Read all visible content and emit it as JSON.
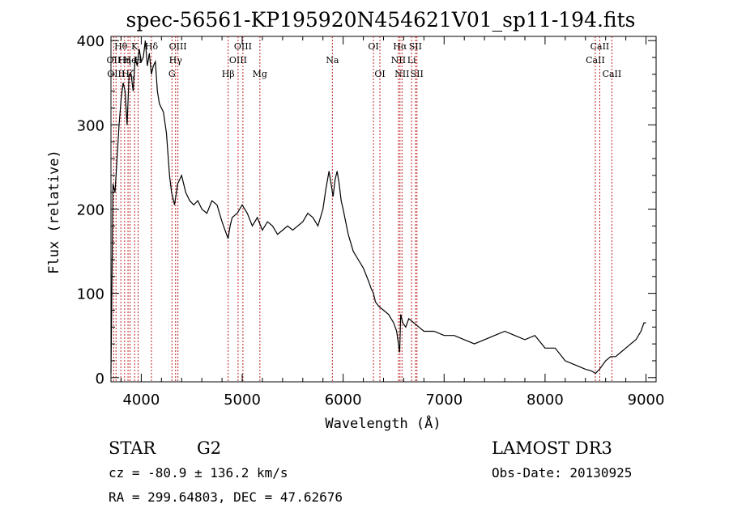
{
  "chart_data": {
    "type": "line",
    "title": "spec-56561-KP195920N454621V01_sp11-194.fits",
    "xlabel": "Wavelength (Å)",
    "ylabel": "Flux (relative)",
    "xlim": [
      3700,
      9100
    ],
    "ylim": [
      -5,
      405
    ],
    "xticks": [
      4000,
      5000,
      6000,
      7000,
      8000,
      9000
    ],
    "yticks": [
      0,
      100,
      200,
      300,
      400
    ],
    "grid": false,
    "series": [
      {
        "x": [
          3700,
          3720,
          3740,
          3760,
          3780,
          3800,
          3820,
          3840,
          3860,
          3880,
          3900,
          3920,
          3940,
          3960,
          3980,
          4000,
          4020,
          4040,
          4060,
          4080,
          4100,
          4120,
          4140,
          4160,
          4180,
          4200,
          4220,
          4250,
          4280,
          4300,
          4330,
          4360,
          4400,
          4440,
          4480,
          4520,
          4560,
          4600,
          4650,
          4700,
          4750,
          4800,
          4830,
          4860,
          4880,
          4900,
          4950,
          5000,
          5050,
          5100,
          5150,
          5200,
          5250,
          5300,
          5350,
          5400,
          5450,
          5500,
          5550,
          5600,
          5650,
          5700,
          5750,
          5800,
          5830,
          5860,
          5880,
          5900,
          5920,
          5940,
          5960,
          5980,
          6000,
          6050,
          6100,
          6150,
          6200,
          6250,
          6280,
          6300,
          6320,
          6350,
          6400,
          6450,
          6500,
          6530,
          6560,
          6570,
          6590,
          6620,
          6650,
          6700,
          6750,
          6800,
          6900,
          7000,
          7100,
          7200,
          7300,
          7400,
          7500,
          7600,
          7700,
          7800,
          7900,
          8000,
          8100,
          8200,
          8300,
          8400,
          8460,
          8500,
          8540,
          8600,
          8650,
          8700,
          8750,
          8800,
          8850,
          8900,
          8950,
          8980,
          9000
        ],
        "y": [
          5,
          230,
          220,
          260,
          300,
          330,
          350,
          340,
          300,
          360,
          360,
          340,
          380,
          370,
          390,
          375,
          380,
          400,
          370,
          385,
          360,
          370,
          375,
          340,
          325,
          320,
          315,
          290,
          240,
          220,
          205,
          230,
          240,
          220,
          210,
          205,
          210,
          200,
          195,
          210,
          205,
          185,
          175,
          165,
          180,
          190,
          195,
          205,
          195,
          180,
          190,
          175,
          185,
          180,
          170,
          175,
          180,
          175,
          180,
          185,
          195,
          190,
          180,
          200,
          225,
          245,
          230,
          215,
          235,
          245,
          230,
          210,
          200,
          170,
          150,
          140,
          130,
          115,
          105,
          100,
          90,
          85,
          80,
          75,
          65,
          55,
          30,
          75,
          65,
          60,
          70,
          65,
          60,
          55,
          55,
          50,
          50,
          45,
          40,
          45,
          50,
          55,
          50,
          45,
          50,
          35,
          35,
          20,
          15,
          10,
          8,
          5,
          10,
          20,
          25,
          25,
          30,
          35,
          40,
          45,
          55,
          65,
          65
        ]
      }
    ],
    "lines": [
      {
        "w": 3727,
        "label": "OII",
        "row": 1
      },
      {
        "w": 3750,
        "label": "OIII",
        "row": 2
      },
      {
        "w": 3798,
        "label": "Hθ",
        "row": 0
      },
      {
        "w": 3835,
        "label": "Hη",
        "row": 1
      },
      {
        "w": 3869,
        "label": "Hζ",
        "row": 2
      },
      {
        "w": 3889,
        "label": "He",
        "row": 1
      },
      {
        "w": 3934,
        "label": "K",
        "row": 0
      },
      {
        "w": 3969,
        "label": "H",
        "row": 1
      },
      {
        "w": 4101,
        "label": "Hδ",
        "row": 0
      },
      {
        "w": 4304,
        "label": "G",
        "row": 2
      },
      {
        "w": 4340,
        "label": "Hγ",
        "row": 1
      },
      {
        "w": 4363,
        "label": "OIII",
        "row": 0
      },
      {
        "w": 4861,
        "label": "Hβ",
        "row": 2
      },
      {
        "w": 4959,
        "label": "OIII",
        "row": 1
      },
      {
        "w": 5007,
        "label": "OIII",
        "row": 0
      },
      {
        "w": 5175,
        "label": "Mg",
        "row": 2
      },
      {
        "w": 5893,
        "label": "Na",
        "row": 1
      },
      {
        "w": 6300,
        "label": "OI",
        "row": 0
      },
      {
        "w": 6364,
        "label": "OI",
        "row": 2
      },
      {
        "w": 6548,
        "label": "NII",
        "row": 1
      },
      {
        "w": 6563,
        "label": "Hα",
        "row": 0
      },
      {
        "w": 6583,
        "label": "NII",
        "row": 2
      },
      {
        "w": 6678,
        "label": "Li",
        "row": 1
      },
      {
        "w": 6716,
        "label": "SII",
        "row": 0
      },
      {
        "w": 6731,
        "label": "SII",
        "row": 2
      },
      {
        "w": 8498,
        "label": "CaII",
        "row": 1
      },
      {
        "w": 8542,
        "label": "CaII",
        "row": 0
      },
      {
        "w": 8662,
        "label": "CaII",
        "row": 2
      }
    ]
  },
  "info": {
    "class_type": "STAR",
    "subclass": "G2",
    "survey": "LAMOST DR3",
    "cz": "cz = -80.9 ± 136.2 km/s",
    "obs_date": "Obs-Date: 20130925",
    "radec": "RA = 299.64803, DEC =  47.62676"
  }
}
